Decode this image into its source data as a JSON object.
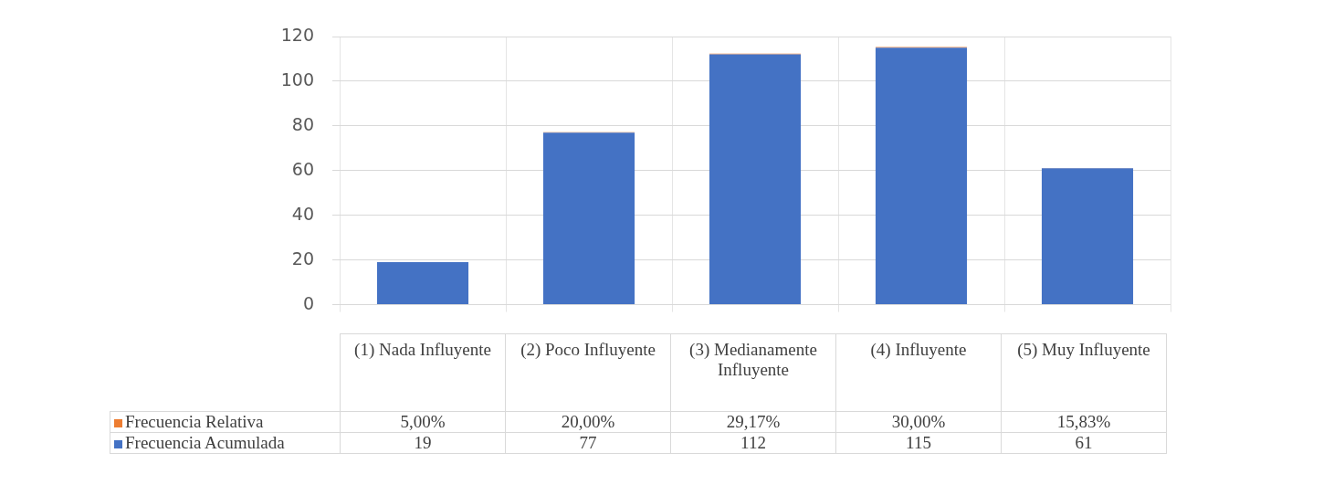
{
  "chart_data": {
    "type": "bar",
    "stacked": true,
    "categories": [
      "(1) Nada Influyente",
      "(2) Poco Influyente",
      "(3) Medianamente Influyente",
      "(4) Influyente",
      "(5) Muy Influyente"
    ],
    "series": [
      {
        "name": "Frecuencia Acumulada",
        "color": "#4472c4",
        "values": [
          19,
          77,
          112,
          115,
          61
        ],
        "value_labels": [
          "19",
          "77",
          "112",
          "115",
          "61"
        ]
      },
      {
        "name": "Frecuencia Relativa",
        "color": "#ed7d31",
        "values": [
          0.05,
          0.2,
          0.2917,
          0.3,
          0.1583
        ],
        "value_labels": [
          "5,00%",
          "20,00%",
          "29,17%",
          "30,00%",
          "15,83%"
        ]
      }
    ],
    "ylim": [
      0,
      120
    ],
    "yticks": [
      0,
      20,
      40,
      60,
      80,
      100,
      120
    ],
    "grid": true,
    "legend": "bottom"
  }
}
